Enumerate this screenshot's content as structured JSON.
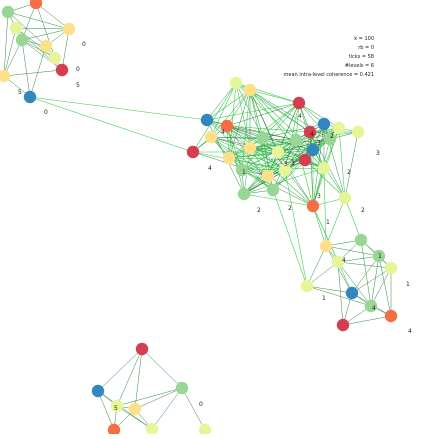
{
  "stats": {
    "k": "k = 100",
    "rb": "rb = 0",
    "ticks": "ticks = 58",
    "levels": "#levels = 6",
    "coherence": "mean intra-level coherence = 0.421"
  },
  "palette": {
    "red": "#d53e4f",
    "orange": "#f46d43",
    "yellow": "#fee08b",
    "pale_yellow": "#e6f598",
    "light_green": "#99d594",
    "blue": "#3288bd",
    "edge_dark": "#1b7d2c",
    "edge_bright": "#2ecc40"
  },
  "level_labels": {
    "cluster_top_left": [
      "0",
      "0",
      "5",
      "5",
      "0"
    ],
    "cluster_main": [
      "4",
      "1",
      "4",
      "3",
      "2",
      "2",
      "2",
      "3",
      "2",
      "3",
      "1",
      "4",
      "3",
      "4",
      "2",
      "3"
    ],
    "cluster_lower": [
      "4",
      "1",
      "1",
      "4",
      "1",
      "4"
    ],
    "cluster_bottom": [
      "0",
      "5"
    ]
  }
}
